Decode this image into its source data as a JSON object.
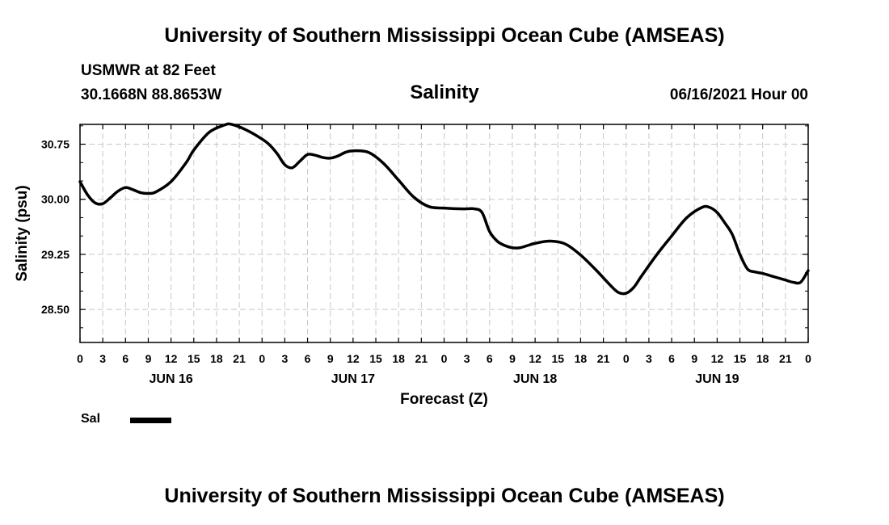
{
  "header": {
    "title": "University of Southern Mississippi Ocean Cube (AMSEAS)",
    "station": "USMWR at 82 Feet",
    "coords": "30.1668N  88.8653W",
    "chart_title": "Salinity",
    "date": "06/16/2021 Hour 00"
  },
  "footer": {
    "title": "University of Southern Mississippi Ocean Cube (AMSEAS)"
  },
  "legend": {
    "label": "Sal"
  },
  "chart_data": {
    "type": "line",
    "title": "Salinity",
    "xlabel": "Forecast (Z)",
    "ylabel": "Salinity (psu)",
    "ylim": [
      28.05,
      31.02
    ],
    "yticks": [
      28.5,
      29.25,
      30.0,
      30.75
    ],
    "ytick_labels": [
      "28.50",
      "29.25",
      "30.00",
      "30.75"
    ],
    "xlim": [
      0,
      96
    ],
    "xtick_labels": [
      "0",
      "3",
      "6",
      "9",
      "12",
      "15",
      "18",
      "21",
      "0",
      "3",
      "6",
      "9",
      "12",
      "15",
      "18",
      "21",
      "0",
      "3",
      "6",
      "9",
      "12",
      "15",
      "18",
      "21",
      "0",
      "3",
      "6",
      "9",
      "12",
      "15",
      "18",
      "21",
      "0"
    ],
    "day_labels": [
      {
        "label": "JUN 16",
        "hour": 12
      },
      {
        "label": "JUN 17",
        "hour": 36
      },
      {
        "label": "JUN 18",
        "hour": 60
      },
      {
        "label": "JUN 19",
        "hour": 84
      }
    ],
    "grid": true,
    "series": [
      {
        "name": "Sal",
        "x": [
          0,
          1,
          2,
          3,
          4,
          5,
          6,
          7,
          8,
          9,
          10,
          12,
          14,
          15,
          17,
          19,
          20,
          22,
          24,
          25,
          26,
          27,
          28,
          29,
          30,
          31,
          32,
          33,
          34,
          35,
          36,
          38,
          40,
          42,
          44,
          46,
          48,
          50,
          51,
          52,
          53,
          54,
          55,
          56,
          57,
          58,
          59,
          60,
          62,
          64,
          66,
          68,
          70,
          71,
          72,
          73,
          74,
          76,
          78,
          80,
          82,
          83,
          84,
          85,
          86,
          87,
          88,
          89,
          90,
          91,
          92,
          93,
          94,
          95,
          96
        ],
        "values": [
          30.24,
          30.06,
          29.95,
          29.94,
          30.02,
          30.11,
          30.16,
          30.13,
          30.09,
          30.08,
          30.1,
          30.24,
          30.5,
          30.67,
          30.91,
          31.01,
          31.02,
          30.94,
          30.82,
          30.74,
          30.62,
          30.47,
          30.43,
          30.52,
          30.61,
          30.6,
          30.57,
          30.56,
          30.59,
          30.64,
          30.66,
          30.64,
          30.49,
          30.26,
          30.03,
          29.9,
          29.88,
          29.87,
          29.87,
          29.87,
          29.82,
          29.56,
          29.43,
          29.37,
          29.34,
          29.34,
          29.37,
          29.4,
          29.43,
          29.39,
          29.24,
          29.04,
          28.82,
          28.73,
          28.72,
          28.8,
          28.95,
          29.24,
          29.5,
          29.75,
          29.89,
          29.89,
          29.82,
          29.68,
          29.52,
          29.25,
          29.05,
          29.01,
          28.99,
          28.96,
          28.93,
          28.9,
          28.87,
          28.87,
          29.03
        ]
      }
    ]
  }
}
